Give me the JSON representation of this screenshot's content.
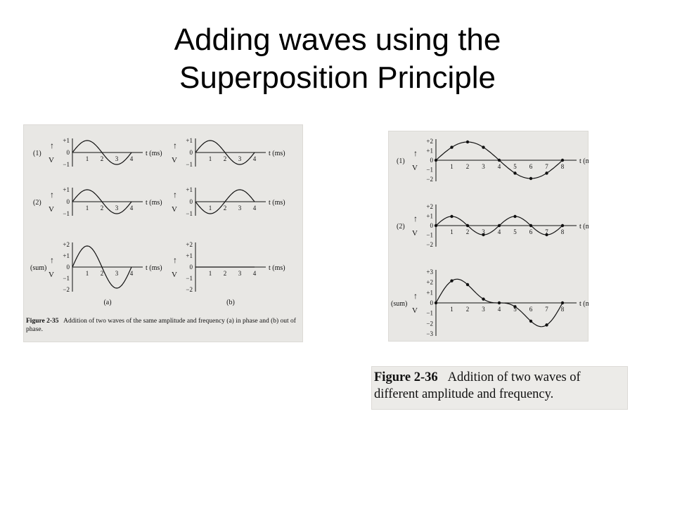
{
  "slide": {
    "title_line1": "Adding waves using the",
    "title_line2": "Superposition Principle"
  },
  "figure35": {
    "row_labels": [
      "(1)",
      "(2)",
      "(sum)"
    ],
    "axis_label": "V",
    "time_label": "t (ms)",
    "ticks_y_small": [
      "+1",
      "0",
      "−1"
    ],
    "ticks_y_sum": [
      "+2",
      "+1",
      "0",
      "−1",
      "−2"
    ],
    "ticks_x": [
      "1",
      "2",
      "3",
      "4"
    ],
    "sub_labels": [
      "(a)",
      "(b)"
    ],
    "caption_number": "Figure 2-35",
    "caption_text": "Addition of two waves of the same amplitude and frequency (a) in phase and (b) out of phase."
  },
  "figure36": {
    "row_labels": [
      "(1)",
      "(2)",
      "(sum)"
    ],
    "axis_label": "V",
    "time_label": "t (ms)",
    "ticks_y_1": [
      "+2",
      "+1",
      "0",
      "−1",
      "−2"
    ],
    "ticks_y_sum": [
      "+3",
      "+2",
      "+1",
      "0",
      "−1",
      "−2",
      "−3"
    ],
    "ticks_x": [
      "1",
      "2",
      "3",
      "4",
      "5",
      "6",
      "7",
      "8"
    ],
    "caption_number": "Figure 2-36",
    "caption_text": "Addition of two waves of different amplitude and frequency."
  },
  "colors": {
    "scan_bg": "#e8e7e4",
    "ink": "#111111"
  }
}
